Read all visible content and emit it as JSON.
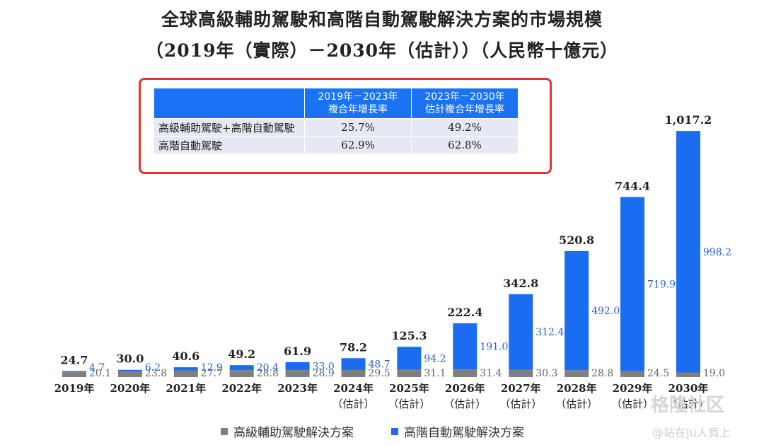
{
  "title_line1": "全球高級輔助駕駛和高階自動駕駛解決方案的市場規模",
  "title_line2": "（2019年（實際）－2030年（估計））（人民幣十億元）",
  "cagr_table": {
    "headers": [
      "",
      "2019年－2023年\n複合年增長率",
      "2023年－2030年\n估計複合年增長率"
    ],
    "rows": [
      {
        "label": "高級輔助駕駛+高階自動駕駛",
        "v1": "25.7%",
        "v2": "49.2%"
      },
      {
        "label": "高階自動駕駛",
        "v1": "62.9%",
        "v2": "62.8%"
      }
    ]
  },
  "colors": {
    "gray": "#7f7f7f",
    "blue": "#1a6cf0",
    "blue_text": "#2a62c9",
    "gray_text": "#666666",
    "box_border": "#e8322b"
  },
  "chart_data": {
    "type": "bar",
    "stacked": true,
    "categories": [
      "2019年",
      "2020年",
      "2021年",
      "2022年",
      "2023年",
      "2024年\n（估計）",
      "2025年\n（估計）",
      "2026年\n（估計）",
      "2027年\n（估計）",
      "2028年\n（估計）",
      "2029年\n（估計）",
      "2030年\n（估計）"
    ],
    "series": [
      {
        "name": "高級輔助駕駛解決方案",
        "values": [
          20.1,
          23.8,
          27.7,
          28.8,
          28.9,
          29.5,
          31.1,
          31.4,
          30.3,
          28.8,
          24.5,
          19.0
        ]
      },
      {
        "name": "高階自動駕駛解決方案",
        "values": [
          4.7,
          6.2,
          12.9,
          20.4,
          33.0,
          48.7,
          94.2,
          191.0,
          312.4,
          492.0,
          719.9,
          998.2
        ]
      }
    ],
    "totals": [
      "24.7",
      "30.0",
      "40.6",
      "49.2",
      "61.9",
      "78.2",
      "125.3",
      "222.4",
      "342.8",
      "520.8",
      "744.4",
      "1,017.2"
    ],
    "gray_labels": [
      "20.1",
      "23.8",
      "27.7",
      "28.8",
      "28.9",
      "29.5",
      "31.1",
      "31.4",
      "30.3",
      "28.8",
      "24.5",
      "19.0"
    ],
    "blue_labels": [
      "4.7",
      "6.2",
      "12.9",
      "20.4",
      "33.0",
      "48.7",
      "94.2",
      "191.0",
      "312.4",
      "492.0",
      "719.9",
      "998.2"
    ],
    "legend": [
      "高級輔助駕駛解決方案",
      "高階自動駕駛解決方案"
    ],
    "legend_position": "bottom"
  },
  "watermark": {
    "brand": "格隆社区",
    "user": "@站在Ju人肩上"
  }
}
